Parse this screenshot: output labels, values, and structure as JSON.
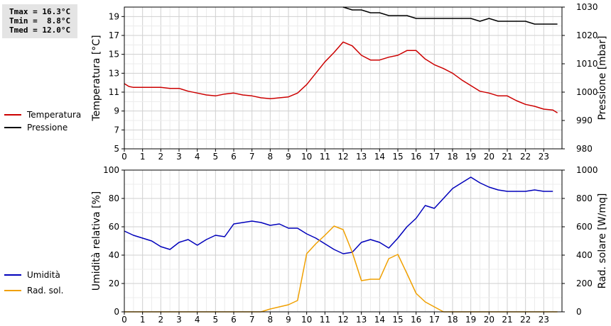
{
  "stats": {
    "tmax": "Tmax = 16.3°C",
    "tmin": "Tmin =  8.8°C",
    "tmed": "Tmed = 12.0°C"
  },
  "chart_data": [
    {
      "type": "line",
      "xlim": [
        0,
        24
      ],
      "x_ticks": [
        "0",
        "1",
        "2",
        "3",
        "4",
        "5",
        "6",
        "7",
        "8",
        "9",
        "10",
        "11",
        "12",
        "13",
        "14",
        "15",
        "16",
        "17",
        "18",
        "19",
        "20",
        "21",
        "22",
        "23"
      ],
      "ylabel": "Temperatura [°C]",
      "ylim": [
        5,
        20
      ],
      "y_ticks": [
        "5",
        "7",
        "9",
        "11",
        "13",
        "15",
        "17",
        "19"
      ],
      "y2label": "Pressione [mbar]",
      "y2lim": [
        980,
        1030
      ],
      "y2_ticks": [
        "980",
        "990",
        "1000",
        "1010",
        "1020",
        "1030"
      ],
      "grid": true,
      "legend_position": "left",
      "series": [
        {
          "name": "Temperatura",
          "axis": "left",
          "color": "#cc0000",
          "points": [
            [
              0,
              11.9
            ],
            [
              0.25,
              11.6
            ],
            [
              0.5,
              11.5
            ],
            [
              1,
              11.5
            ],
            [
              1.5,
              11.5
            ],
            [
              2,
              11.5
            ],
            [
              2.5,
              11.4
            ],
            [
              3,
              11.4
            ],
            [
              3.5,
              11.1
            ],
            [
              4,
              10.9
            ],
            [
              4.5,
              10.7
            ],
            [
              5,
              10.6
            ],
            [
              5.5,
              10.8
            ],
            [
              6,
              10.9
            ],
            [
              6.5,
              10.7
            ],
            [
              7,
              10.6
            ],
            [
              7.5,
              10.4
            ],
            [
              8,
              10.3
            ],
            [
              8.5,
              10.4
            ],
            [
              9,
              10.5
            ],
            [
              9.5,
              10.9
            ],
            [
              10,
              11.8
            ],
            [
              10.5,
              13.0
            ],
            [
              11,
              14.2
            ],
            [
              11.5,
              15.2
            ],
            [
              12,
              16.3
            ],
            [
              12.5,
              15.9
            ],
            [
              13,
              14.9
            ],
            [
              13.5,
              14.4
            ],
            [
              14,
              14.4
            ],
            [
              14.5,
              14.7
            ],
            [
              15,
              14.9
            ],
            [
              15.5,
              15.4
            ],
            [
              16,
              15.4
            ],
            [
              16.5,
              14.5
            ],
            [
              17,
              13.9
            ],
            [
              17.5,
              13.5
            ],
            [
              18,
              13.0
            ],
            [
              18.5,
              12.3
            ],
            [
              19,
              11.7
            ],
            [
              19.5,
              11.1
            ],
            [
              20,
              10.9
            ],
            [
              20.5,
              10.6
            ],
            [
              21,
              10.6
            ],
            [
              21.5,
              10.1
            ],
            [
              22,
              9.7
            ],
            [
              22.5,
              9.5
            ],
            [
              23,
              9.2
            ],
            [
              23.5,
              9.1
            ],
            [
              23.75,
              8.8
            ]
          ]
        },
        {
          "name": "Pressione",
          "axis": "right",
          "color": "#000000",
          "points": [
            [
              12,
              1030
            ],
            [
              12.5,
              1029
            ],
            [
              13,
              1029
            ],
            [
              13.5,
              1028
            ],
            [
              14,
              1028
            ],
            [
              14.5,
              1027
            ],
            [
              15,
              1027
            ],
            [
              15.5,
              1027
            ],
            [
              16,
              1026
            ],
            [
              16.5,
              1026
            ],
            [
              17,
              1026
            ],
            [
              17.5,
              1026
            ],
            [
              18,
              1026
            ],
            [
              18.5,
              1026
            ],
            [
              19,
              1026
            ],
            [
              19.5,
              1025
            ],
            [
              20,
              1026
            ],
            [
              20.5,
              1025
            ],
            [
              21,
              1025
            ],
            [
              21.5,
              1025
            ],
            [
              22,
              1025
            ],
            [
              22.5,
              1024
            ],
            [
              23,
              1024
            ],
            [
              23.75,
              1024
            ]
          ]
        }
      ]
    },
    {
      "type": "line",
      "xlim": [
        0,
        24
      ],
      "x_ticks": [
        "0",
        "1",
        "2",
        "3",
        "4",
        "5",
        "6",
        "7",
        "8",
        "9",
        "10",
        "11",
        "12",
        "13",
        "14",
        "15",
        "16",
        "17",
        "18",
        "19",
        "20",
        "21",
        "22",
        "23"
      ],
      "ylabel": "Umidità relativa [%]",
      "ylim": [
        0,
        100
      ],
      "y_ticks": [
        "0",
        "20",
        "40",
        "60",
        "80",
        "100"
      ],
      "y2label": "Rad. solare [W/mq]",
      "y2lim": [
        0,
        1000
      ],
      "y2_ticks": [
        "0",
        "200",
        "400",
        "600",
        "800",
        "1000"
      ],
      "grid": true,
      "legend_position": "left",
      "series": [
        {
          "name": "Umidità",
          "axis": "left",
          "color": "#0000bb",
          "points": [
            [
              0,
              57
            ],
            [
              0.5,
              54
            ],
            [
              1,
              52
            ],
            [
              1.5,
              50
            ],
            [
              2,
              46
            ],
            [
              2.5,
              44
            ],
            [
              3,
              49
            ],
            [
              3.5,
              51
            ],
            [
              4,
              47
            ],
            [
              4.5,
              51
            ],
            [
              5,
              54
            ],
            [
              5.5,
              53
            ],
            [
              6,
              62
            ],
            [
              6.5,
              63
            ],
            [
              7,
              64
            ],
            [
              7.5,
              63
            ],
            [
              8,
              61
            ],
            [
              8.5,
              62
            ],
            [
              9,
              59
            ],
            [
              9.5,
              59
            ],
            [
              10,
              55
            ],
            [
              10.5,
              52
            ],
            [
              11,
              48
            ],
            [
              11.5,
              44
            ],
            [
              12,
              41
            ],
            [
              12.5,
              42
            ],
            [
              13,
              49
            ],
            [
              13.5,
              51
            ],
            [
              14,
              49
            ],
            [
              14.5,
              45
            ],
            [
              15,
              52
            ],
            [
              15.5,
              60
            ],
            [
              16,
              66
            ],
            [
              16.5,
              75
            ],
            [
              17,
              73
            ],
            [
              17.5,
              80
            ],
            [
              18,
              87
            ],
            [
              18.5,
              91
            ],
            [
              19,
              95
            ],
            [
              19.5,
              91
            ],
            [
              20,
              88
            ],
            [
              20.5,
              86
            ],
            [
              21,
              85
            ],
            [
              21.5,
              85
            ],
            [
              22,
              85
            ],
            [
              22.5,
              86
            ],
            [
              23,
              85
            ],
            [
              23.5,
              85
            ]
          ]
        },
        {
          "name": "Rad. sol.",
          "axis": "right",
          "color": "#f0a000",
          "points": [
            [
              0,
              0
            ],
            [
              7.5,
              0
            ],
            [
              8,
              20
            ],
            [
              8.5,
              35
            ],
            [
              9,
              50
            ],
            [
              9.5,
              80
            ],
            [
              10,
              410
            ],
            [
              10.5,
              480
            ],
            [
              11,
              540
            ],
            [
              11.5,
              605
            ],
            [
              12,
              580
            ],
            [
              12.5,
              420
            ],
            [
              13,
              220
            ],
            [
              13.5,
              230
            ],
            [
              14,
              230
            ],
            [
              14.5,
              375
            ],
            [
              15,
              405
            ],
            [
              15.5,
              270
            ],
            [
              16,
              130
            ],
            [
              16.5,
              70
            ],
            [
              17,
              35
            ],
            [
              17.5,
              0
            ],
            [
              23.75,
              0
            ]
          ]
        }
      ]
    }
  ]
}
